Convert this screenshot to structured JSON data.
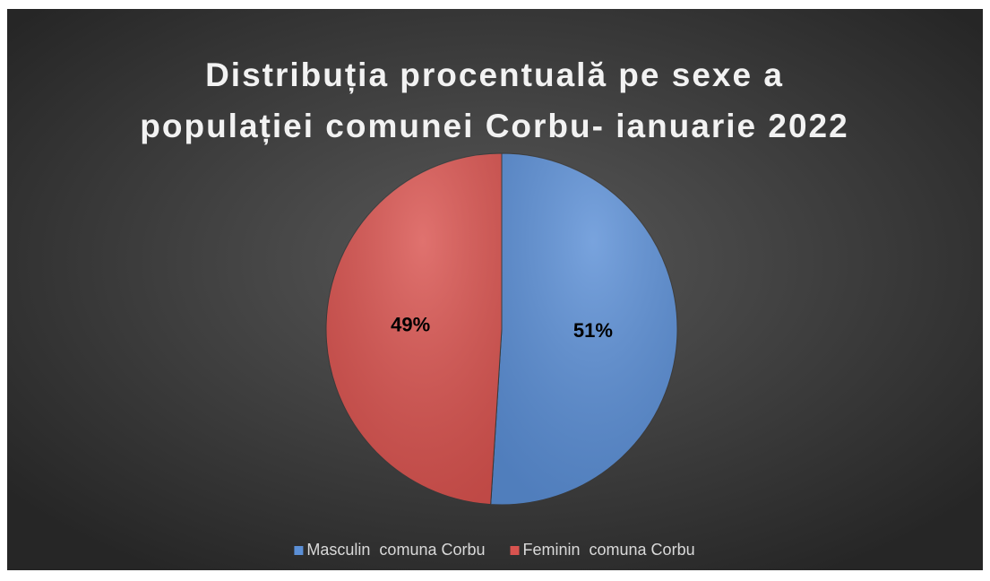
{
  "chart_data": {
    "type": "pie",
    "title": [
      "Distribuția procentuală pe sexe a",
      "populației comunei Corbu- ianuarie 2022"
    ],
    "categories": [
      "Masculin  comuna Corbu",
      "Feminin  comuna Corbu"
    ],
    "values": [
      51,
      49
    ],
    "value_labels": [
      "51%",
      "49%"
    ],
    "colors": [
      "#5b8fd6",
      "#d9534f"
    ],
    "legend": "bottom"
  }
}
